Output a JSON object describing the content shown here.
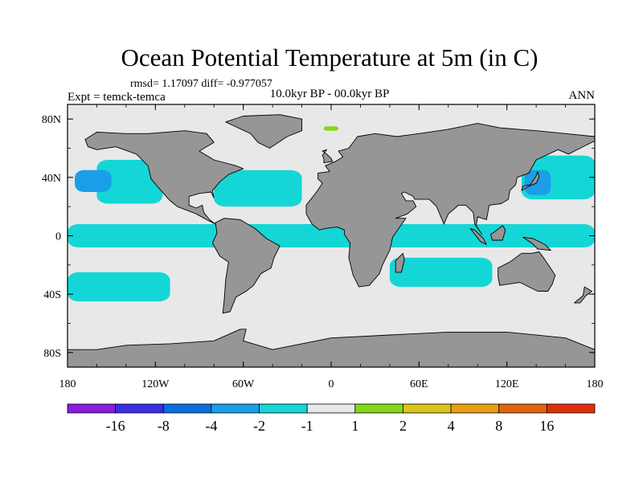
{
  "chart_data": {
    "type": "heatmap",
    "title": "Ocean Potential Temperature at 5m (in C)",
    "stats_line": "rmsd= 1.17097 diff= -0.977057",
    "left_label": "Expt = temck-temca",
    "center_label": "10.0kyr BP - 00.0kyr BP",
    "right_label": "ANN",
    "xlim": [
      -180,
      180
    ],
    "ylim": [
      -90,
      90
    ],
    "x_ticks": [
      {
        "value": -180,
        "label": "180"
      },
      {
        "value": -120,
        "label": "120W"
      },
      {
        "value": -60,
        "label": "60W"
      },
      {
        "value": 0,
        "label": "0"
      },
      {
        "value": 60,
        "label": "60E"
      },
      {
        "value": 120,
        "label": "120E"
      },
      {
        "value": 180,
        "label": "180"
      }
    ],
    "y_ticks": [
      {
        "value": 80,
        "label": "80N"
      },
      {
        "value": 40,
        "label": "40N"
      },
      {
        "value": 0,
        "label": "0"
      },
      {
        "value": -40,
        "label": "40S"
      },
      {
        "value": -80,
        "label": "80S"
      }
    ],
    "colorbar": {
      "levels": [
        "-16",
        "-8",
        "-4",
        "-2",
        "-1",
        "1",
        "2",
        "4",
        "8",
        "16"
      ],
      "colors": [
        "#8a1de0",
        "#3a2ee6",
        "#0a6ee0",
        "#1a9ee8",
        "#15d6d6",
        "#e8e8e8",
        "#84d81a",
        "#dcc41a",
        "#e8a012",
        "#e2640e",
        "#e0300a"
      ]
    },
    "colors": {
      "land": "#969696",
      "ocean_background": "#e8e8e8",
      "cool_1": "#15d6d6",
      "cool_2": "#1a9ee8",
      "cool_3": "#0a6ee0",
      "warm_1": "#84d81a"
    },
    "anomaly_regions": [
      {
        "bin": "-2 to -1",
        "lon": [
          -180,
          180
        ],
        "lat": [
          -8,
          8
        ]
      },
      {
        "bin": "-2 to -1",
        "lon": [
          -160,
          -115
        ],
        "lat": [
          22,
          52
        ]
      },
      {
        "bin": "-4 to -2",
        "lon": [
          -175,
          -150
        ],
        "lat": [
          30,
          45
        ]
      },
      {
        "bin": "-2 to -1",
        "lon": [
          -80,
          -20
        ],
        "lat": [
          20,
          45
        ]
      },
      {
        "bin": "-2 to -1",
        "lon": [
          130,
          180
        ],
        "lat": [
          25,
          55
        ]
      },
      {
        "bin": "-4 to -2",
        "lon": [
          132,
          150
        ],
        "lat": [
          28,
          45
        ]
      },
      {
        "bin": "-2 to -1",
        "lon": [
          -180,
          -110
        ],
        "lat": [
          -45,
          -25
        ]
      },
      {
        "bin": "-2 to -1",
        "lon": [
          40,
          110
        ],
        "lat": [
          -35,
          -15
        ]
      },
      {
        "bin": "1 to 2",
        "lon": [
          -5,
          5
        ],
        "lat": [
          72,
          75
        ]
      }
    ]
  }
}
